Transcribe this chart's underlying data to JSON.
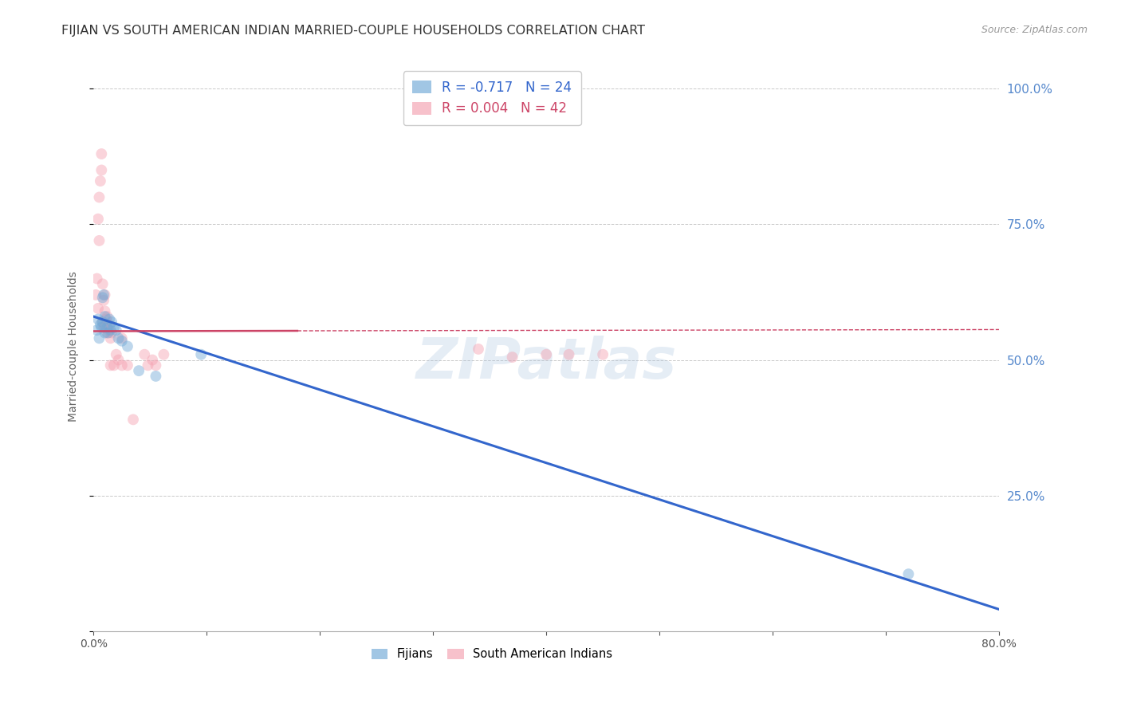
{
  "title": "FIJIAN VS SOUTH AMERICAN INDIAN MARRIED-COUPLE HOUSEHOLDS CORRELATION CHART",
  "source": "Source: ZipAtlas.com",
  "ylabel": "Married-couple Households",
  "xlim": [
    0.0,
    0.8
  ],
  "ylim": [
    0.0,
    1.05
  ],
  "yticks": [
    0.0,
    0.25,
    0.5,
    0.75,
    1.0
  ],
  "ytick_labels": [
    "",
    "25.0%",
    "50.0%",
    "75.0%",
    "100.0%"
  ],
  "xticks": [
    0.0,
    0.1,
    0.2,
    0.3,
    0.4,
    0.5,
    0.6,
    0.7,
    0.8
  ],
  "xtick_labels": [
    "0.0%",
    "",
    "",
    "",
    "",
    "",
    "",
    "",
    "80.0%"
  ],
  "fijian_color": "#6fa8d6",
  "sa_indian_color": "#f4a0b0",
  "fijian_line_color": "#3366cc",
  "sa_line_color": "#cc4466",
  "fijian_R": -0.717,
  "fijian_N": 24,
  "sa_indian_R": 0.004,
  "sa_indian_N": 42,
  "fijian_scatter_x": [
    0.003,
    0.004,
    0.005,
    0.006,
    0.007,
    0.008,
    0.008,
    0.009,
    0.01,
    0.01,
    0.012,
    0.013,
    0.014,
    0.015,
    0.016,
    0.018,
    0.02,
    0.022,
    0.025,
    0.03,
    0.04,
    0.055,
    0.095,
    0.72
  ],
  "fijian_scatter_y": [
    0.555,
    0.575,
    0.54,
    0.565,
    0.56,
    0.57,
    0.615,
    0.62,
    0.55,
    0.58,
    0.56,
    0.55,
    0.575,
    0.555,
    0.57,
    0.56,
    0.555,
    0.54,
    0.535,
    0.525,
    0.48,
    0.47,
    0.51,
    0.105
  ],
  "sa_indian_scatter_x": [
    0.002,
    0.003,
    0.004,
    0.004,
    0.005,
    0.005,
    0.006,
    0.007,
    0.007,
    0.008,
    0.008,
    0.009,
    0.009,
    0.01,
    0.01,
    0.01,
    0.011,
    0.011,
    0.012,
    0.012,
    0.013,
    0.014,
    0.015,
    0.015,
    0.016,
    0.018,
    0.02,
    0.022,
    0.025,
    0.025,
    0.03,
    0.035,
    0.045,
    0.048,
    0.052,
    0.055,
    0.062,
    0.34,
    0.37,
    0.4,
    0.42,
    0.45
  ],
  "sa_indian_scatter_y": [
    0.62,
    0.65,
    0.595,
    0.76,
    0.72,
    0.8,
    0.83,
    0.85,
    0.88,
    0.57,
    0.64,
    0.56,
    0.61,
    0.56,
    0.59,
    0.62,
    0.565,
    0.575,
    0.55,
    0.58,
    0.555,
    0.565,
    0.49,
    0.54,
    0.55,
    0.49,
    0.51,
    0.5,
    0.49,
    0.54,
    0.49,
    0.39,
    0.51,
    0.49,
    0.5,
    0.49,
    0.51,
    0.52,
    0.505,
    0.51,
    0.51,
    0.51
  ],
  "fijian_line_x": [
    0.0,
    0.8
  ],
  "fijian_line_y": [
    0.58,
    0.04
  ],
  "sa_line_x": [
    0.0,
    0.8
  ],
  "sa_line_y": [
    0.553,
    0.556
  ],
  "sa_line_solid_end": 0.18,
  "watermark": "ZIPatlas",
  "background_color": "#ffffff",
  "grid_color": "#bbbbbb",
  "title_color": "#333333",
  "axis_label_color": "#666666",
  "right_tick_color": "#5588cc",
  "marker_size": 100,
  "marker_alpha": 0.45,
  "title_fontsize": 11.5,
  "source_fontsize": 9,
  "ylabel_fontsize": 10,
  "legend_fontsize": 12
}
